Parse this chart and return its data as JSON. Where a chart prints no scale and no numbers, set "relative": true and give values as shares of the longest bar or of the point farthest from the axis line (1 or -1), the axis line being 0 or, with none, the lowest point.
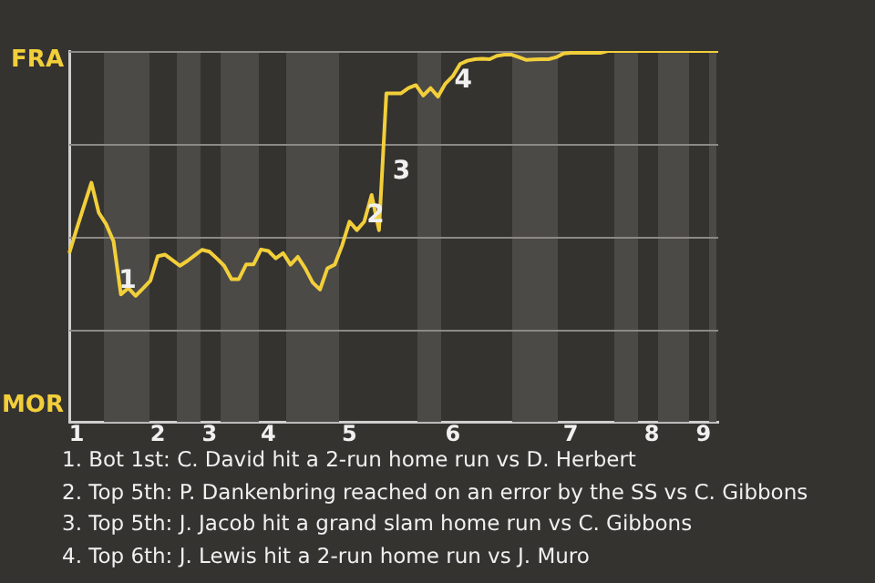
{
  "chart_data": {
    "type": "line",
    "relative": true,
    "categories": [
      null,
      "1",
      null,
      null,
      null,
      null,
      null,
      null,
      null,
      null,
      null,
      null,
      "2",
      null,
      null,
      null,
      null,
      null,
      null,
      "3",
      null,
      null,
      null,
      null,
      null,
      null,
      null,
      "4",
      null,
      null,
      null,
      null,
      null,
      null,
      null,
      null,
      null,
      null,
      "5",
      null,
      null,
      null,
      null,
      null,
      null,
      null,
      null,
      null,
      null,
      null,
      null,
      null,
      "6",
      null,
      null,
      null,
      null,
      null,
      null,
      null,
      null,
      null,
      null,
      null,
      null,
      null,
      null,
      null,
      "7",
      null,
      null,
      null,
      null,
      null,
      null,
      null,
      null,
      null,
      null,
      "8",
      null,
      null,
      null,
      null,
      null,
      null,
      "9",
      null,
      null
    ],
    "series": [
      {
        "color": "#f2cf3a",
        "values": [
          0.455,
          0.52,
          0.583,
          0.645,
          0.564,
          0.533,
          0.487,
          0.344,
          0.361,
          0.34,
          0.36,
          0.381,
          0.447,
          0.451,
          0.436,
          0.421,
          0.434,
          0.449,
          0.464,
          0.459,
          0.441,
          0.421,
          0.385,
          0.385,
          0.425,
          0.425,
          0.465,
          0.461,
          0.441,
          0.455,
          0.424,
          0.445,
          0.414,
          0.376,
          0.357,
          0.414,
          0.424,
          0.476,
          0.54,
          0.517,
          0.54,
          0.612,
          0.517,
          0.886,
          0.886,
          0.886,
          0.9,
          0.908,
          0.88,
          0.9,
          0.877,
          0.912,
          0.932,
          0.965,
          0.974,
          0.978,
          0.979,
          0.978,
          0.987,
          0.99,
          0.99,
          0.983,
          0.976,
          0.977,
          0.978,
          0.978,
          0.983,
          0.993,
          0.995,
          0.995,
          0.995,
          0.995,
          0.995,
          1,
          1,
          1,
          1,
          1,
          1,
          1,
          1,
          1,
          1,
          1,
          1,
          1,
          1,
          1,
          1
        ]
      }
    ],
    "grid": false,
    "legend": false,
    "marker": "none",
    "line_style": "solid",
    "ref_lines": [
      {
        "axis": "y",
        "value": 0.25,
        "color": "#8c8a86"
      },
      {
        "axis": "y",
        "value": 0.5,
        "color": "#8c8a86"
      },
      {
        "axis": "y",
        "value": 0.75,
        "color": "#8c8a86"
      },
      {
        "axis": "y",
        "value": 1,
        "color": "#8c8a86"
      }
    ],
    "annotations": [
      "FRA",
      "MOR",
      "1",
      "2",
      "3",
      "4",
      "1. Bot 1st: C. David hit a 2-run home run vs D. Herbert",
      "2. Top 5th: P. Dankenbring reached on an error by the SS vs C. Gibbons",
      "3. Top 5th: J. Jacob hit a grand slam home run vs C. Gibbons",
      "4. Top 6th: J. Lewis hit a 2-run home run vs J. Muro"
    ]
  }
}
